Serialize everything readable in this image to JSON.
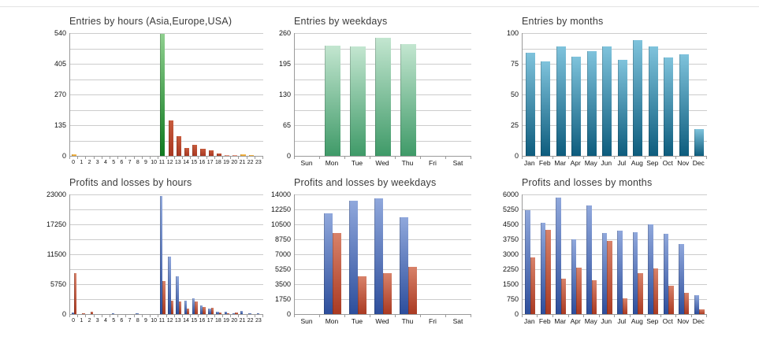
{
  "palette": {
    "green_bright": [
      "#8fd08f",
      "#0f7a1f"
    ],
    "green_soft": [
      "#c3e6d0",
      "#3f9a68"
    ],
    "teal_blue": [
      "#7fc3dc",
      "#0d5c7d"
    ],
    "blue": [
      "#90a8dc",
      "#2d4e9c"
    ],
    "red": [
      "#c75b3d",
      "#a93822"
    ],
    "red_loss": [
      "#d8826a",
      "#aa3a22"
    ],
    "salmon": [
      "#f2a896",
      "#ec8a74"
    ],
    "orange": [
      "#f7c56a",
      "#eda321"
    ]
  },
  "chart_data": [
    {
      "type": "bar",
      "title": "Entries by hours (Asia,Europe,USA)",
      "xlabel": "",
      "ylabel": "",
      "ylim": [
        0,
        540
      ],
      "gridlines": 8,
      "label_every": 2,
      "y_labels": [
        "540",
        "405",
        "270",
        "135",
        "0"
      ],
      "categories": [
        "0",
        "1",
        "2",
        "3",
        "4",
        "5",
        "6",
        "7",
        "8",
        "9",
        "10",
        "11",
        "12",
        "13",
        "14",
        "15",
        "16",
        "17",
        "18",
        "19",
        "20",
        "21",
        "22",
        "23"
      ],
      "series": [
        {
          "name": "entries",
          "values": [
            8,
            0,
            0,
            0,
            0,
            0,
            0,
            0,
            0,
            0,
            0,
            538,
            155,
            86,
            36,
            50,
            30,
            23,
            10,
            3,
            3,
            6,
            3,
            0
          ],
          "bar_colors": [
            "orange",
            "red",
            "red",
            "red",
            "red",
            "red",
            "red",
            "red",
            "red",
            "red",
            "red",
            "green_bright",
            "red",
            "red",
            "red",
            "red",
            "red",
            "red",
            "red",
            "salmon",
            "salmon",
            "orange",
            "orange",
            "red"
          ]
        }
      ]
    },
    {
      "type": "bar",
      "title": "Entries by weekdays",
      "xlabel": "",
      "ylabel": "",
      "ylim": [
        0,
        260
      ],
      "gridlines": 8,
      "label_every": 2,
      "y_labels": [
        "260",
        "195",
        "130",
        "65",
        "0"
      ],
      "categories": [
        "Sun",
        "Mon",
        "Tue",
        "Wed",
        "Thu",
        "Fri",
        "Sat"
      ],
      "series": [
        {
          "name": "entries",
          "color": "green_soft",
          "values": [
            0,
            234,
            231,
            250,
            237,
            0,
            0
          ]
        }
      ]
    },
    {
      "type": "bar",
      "title": "Entries by months",
      "xlabel": "",
      "ylabel": "",
      "ylim": [
        0,
        100
      ],
      "gridlines": 8,
      "label_every": 2,
      "y_labels": [
        "100",
        "75",
        "50",
        "25",
        "0"
      ],
      "categories": [
        "Jan",
        "Feb",
        "Mar",
        "Apr",
        "May",
        "Jun",
        "Jul",
        "Aug",
        "Sep",
        "Oct",
        "Nov",
        "Dec"
      ],
      "series": [
        {
          "name": "entries",
          "color": "teal_blue",
          "values": [
            84,
            77,
            89,
            81,
            85,
            89,
            78,
            94,
            89,
            80,
            83,
            22
          ]
        }
      ]
    },
    {
      "type": "bar",
      "title": "Profits and losses by hours",
      "xlabel": "",
      "ylabel": "",
      "ylim": [
        0,
        23000
      ],
      "gridlines": 8,
      "label_every": 2,
      "y_labels": [
        "23000",
        "17250",
        "11500",
        "5750",
        "0"
      ],
      "categories": [
        "0",
        "1",
        "2",
        "3",
        "4",
        "5",
        "6",
        "7",
        "8",
        "9",
        "10",
        "11",
        "12",
        "13",
        "14",
        "15",
        "16",
        "17",
        "18",
        "19",
        "20",
        "21",
        "22",
        "23"
      ],
      "series": [
        {
          "name": "profit",
          "color": "blue",
          "values": [
            250,
            0,
            0,
            0,
            0,
            200,
            0,
            0,
            100,
            0,
            0,
            22700,
            11000,
            7200,
            2500,
            3050,
            1650,
            1050,
            450,
            400,
            150,
            650,
            100,
            100
          ]
        },
        {
          "name": "loss",
          "color": "red_loss",
          "values": [
            7900,
            150,
            400,
            0,
            0,
            0,
            0,
            0,
            0,
            0,
            0,
            6400,
            2500,
            2350,
            1050,
            2450,
            1300,
            1150,
            280,
            170,
            320,
            0,
            0,
            0
          ]
        }
      ]
    },
    {
      "type": "bar",
      "title": "Profits and losses by weekdays",
      "xlabel": "",
      "ylabel": "",
      "ylim": [
        0,
        14000
      ],
      "gridlines": 8,
      "label_every": 1,
      "y_labels": [
        "14000",
        "12250",
        "10500",
        "8750",
        "7000",
        "5250",
        "3500",
        "1750",
        "0"
      ],
      "categories": [
        "Sun",
        "Mon",
        "Tue",
        "Wed",
        "Thu",
        "Fri",
        "Sat"
      ],
      "series": [
        {
          "name": "profit",
          "color": "blue",
          "values": [
            0,
            11800,
            13300,
            13500,
            11350,
            0,
            0
          ]
        },
        {
          "name": "loss",
          "color": "red_loss",
          "values": [
            0,
            9500,
            4450,
            4750,
            5550,
            0,
            0
          ]
        }
      ]
    },
    {
      "type": "bar",
      "title": "Profits and losses by months",
      "xlabel": "",
      "ylabel": "",
      "ylim": [
        0,
        6000
      ],
      "gridlines": 8,
      "label_every": 1,
      "y_labels": [
        "6000",
        "5250",
        "4500",
        "3750",
        "3000",
        "2250",
        "1500",
        "750",
        "0"
      ],
      "categories": [
        "Jan",
        "Feb",
        "Mar",
        "Apr",
        "May",
        "Jun",
        "Jul",
        "Aug",
        "Sep",
        "Oct",
        "Nov",
        "Dec"
      ],
      "series": [
        {
          "name": "profit",
          "color": "blue",
          "values": [
            5200,
            4580,
            5840,
            3760,
            5440,
            4060,
            4190,
            4110,
            4510,
            4030,
            3500,
            950
          ]
        },
        {
          "name": "loss",
          "color": "red_loss",
          "values": [
            2830,
            4230,
            1780,
            2330,
            1700,
            3660,
            800,
            2060,
            2290,
            1430,
            1060,
            250
          ]
        }
      ]
    }
  ]
}
